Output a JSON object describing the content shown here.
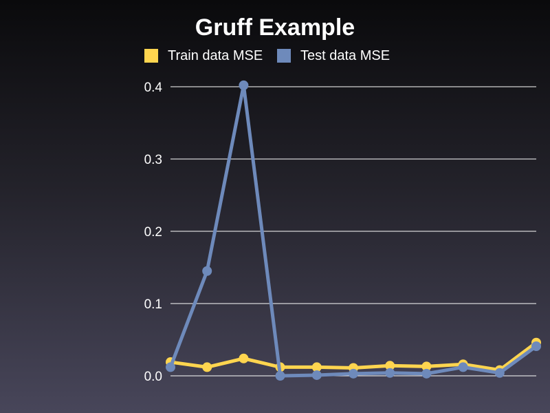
{
  "chart_data": {
    "type": "line",
    "title": "Gruff Example",
    "xlabel": "",
    "ylabel": "",
    "ylim": [
      0,
      0.4
    ],
    "yticks": [
      "0.0",
      "0.1",
      "0.2",
      "0.3",
      "0.4"
    ],
    "ytick_values": [
      0,
      0.1,
      0.2,
      0.3,
      0.4
    ],
    "x": [
      1,
      2,
      3,
      4,
      5,
      6,
      7,
      8,
      9,
      10,
      11
    ],
    "grid": true,
    "legend_position": "top",
    "series": [
      {
        "name": "Train data MSE",
        "color": "#ffd54f",
        "values": [
          0.019,
          0.012,
          0.024,
          0.012,
          0.012,
          0.011,
          0.014,
          0.013,
          0.016,
          0.008,
          0.046
        ]
      },
      {
        "name": "Test data MSE",
        "color": "#6e8abb",
        "values": [
          0.012,
          0.145,
          0.402,
          0.0,
          0.001,
          0.003,
          0.004,
          0.003,
          0.012,
          0.004,
          0.041
        ]
      }
    ]
  }
}
